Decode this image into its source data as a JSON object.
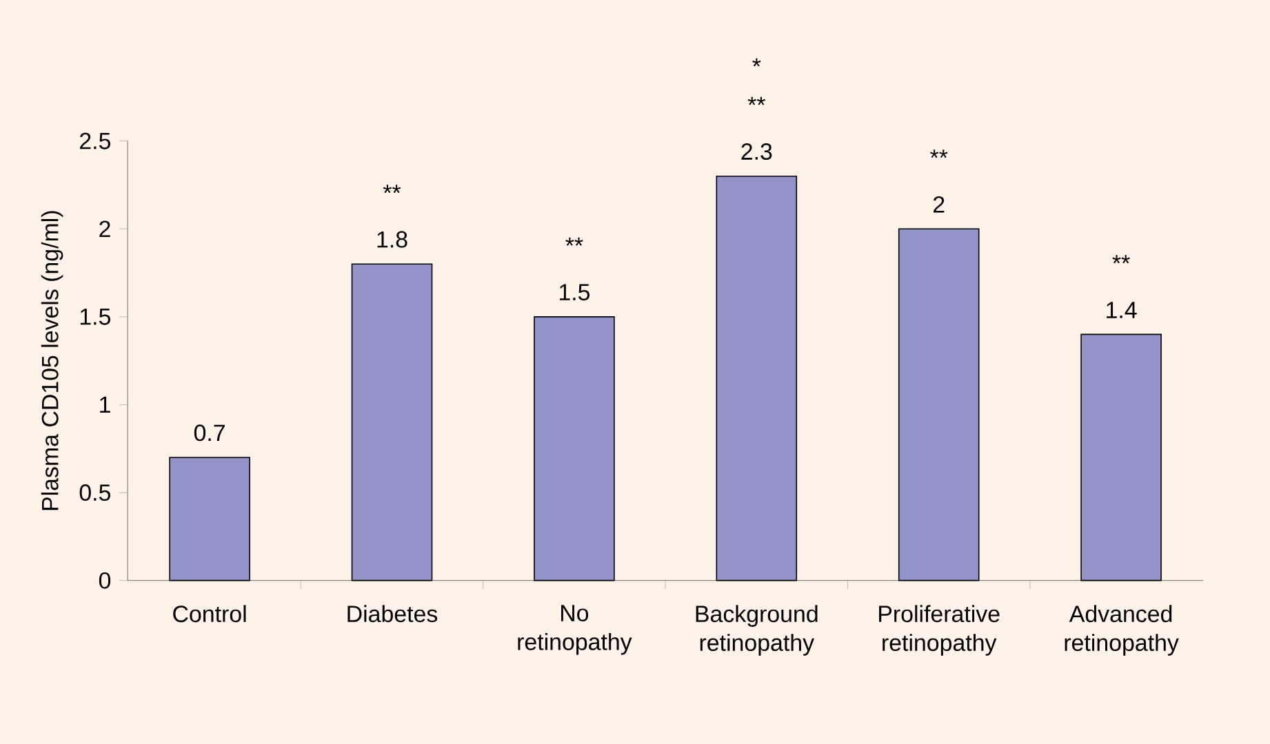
{
  "chart_data": {
    "type": "bar",
    "ylabel": "Plasma CD105 levels (ng/ml)",
    "categories": [
      "Control",
      "Diabetes",
      "No retinopathy",
      "Background retinopathy",
      "Proliferative retinopathy",
      "Advanced retinopathy"
    ],
    "values": [
      0.7,
      1.8,
      1.5,
      2.3,
      2,
      1.4
    ],
    "color": "#9393c9",
    "ylim": [
      0,
      2.5
    ],
    "yticks": [
      0,
      0.5,
      1,
      1.5,
      2,
      2.5
    ],
    "data_labels": true,
    "annotations": [
      "**",
      "**",
      "**",
      "*",
      "**",
      "**"
    ]
  }
}
